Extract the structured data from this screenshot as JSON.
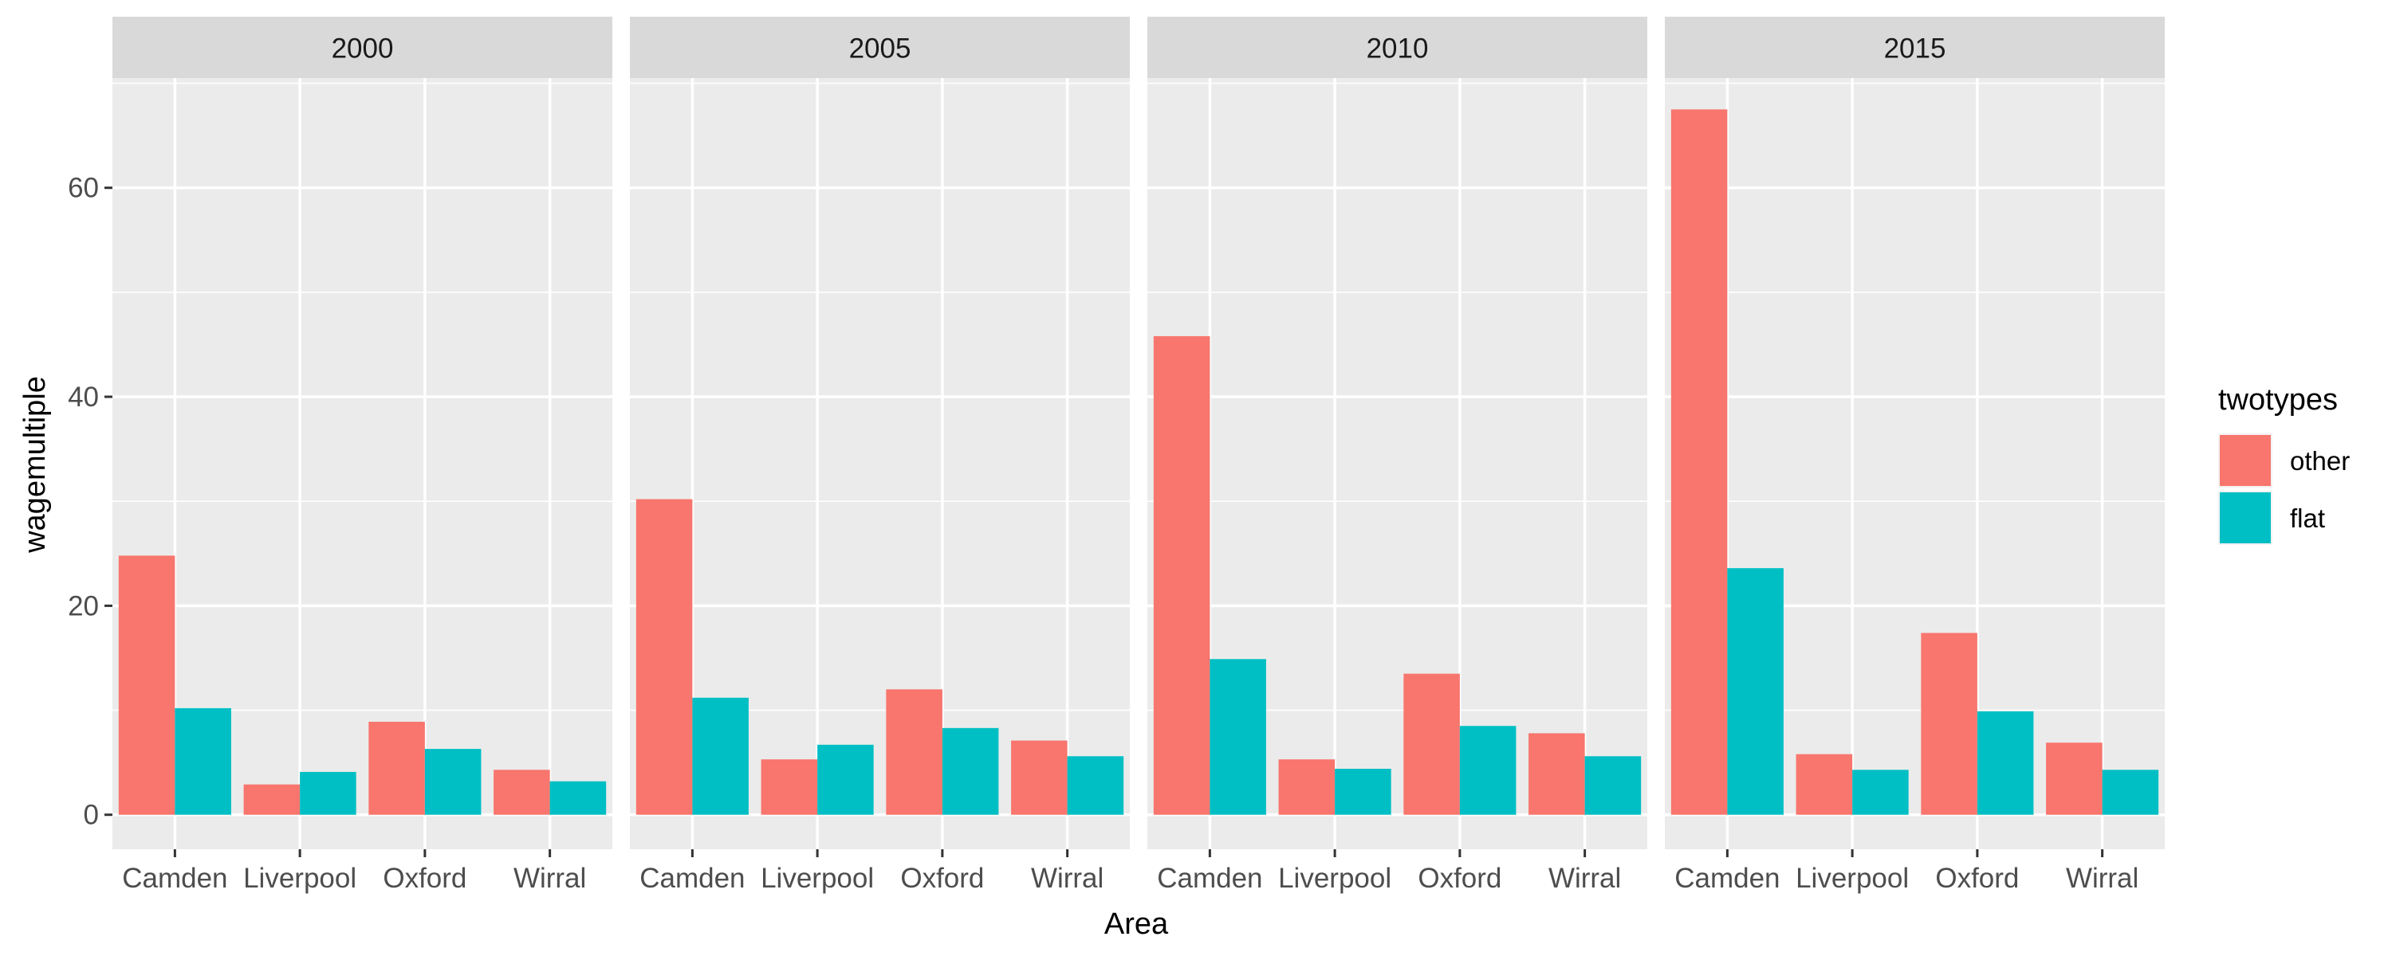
{
  "chart_data": {
    "type": "bar",
    "facet_variable": "year",
    "facets": [
      "2000",
      "2005",
      "2010",
      "2015"
    ],
    "categories": [
      "Camden",
      "Liverpool",
      "Oxford",
      "Wirral"
    ],
    "xlabel": "Area",
    "ylabel": "wagemultiple",
    "ylim": [
      -3.3,
      70.5
    ],
    "yticks": [
      0,
      20,
      40,
      60
    ],
    "grid": true,
    "legend": {
      "title": "twotypes",
      "placement": "right",
      "entries": [
        {
          "label": "other",
          "color": "#F8766D"
        },
        {
          "label": "flat",
          "color": "#00BFC4"
        }
      ]
    },
    "panels": [
      {
        "facet": "2000",
        "series": [
          {
            "name": "other",
            "color": "#F8766D",
            "values": [
              24.8,
              2.9,
              8.9,
              4.3
            ]
          },
          {
            "name": "flat",
            "color": "#00BFC4",
            "values": [
              10.2,
              4.1,
              6.3,
              3.2
            ]
          }
        ]
      },
      {
        "facet": "2005",
        "series": [
          {
            "name": "other",
            "color": "#F8766D",
            "values": [
              30.2,
              5.3,
              12.0,
              7.1
            ]
          },
          {
            "name": "flat",
            "color": "#00BFC4",
            "values": [
              11.2,
              6.7,
              8.3,
              5.6
            ]
          }
        ]
      },
      {
        "facet": "2010",
        "series": [
          {
            "name": "other",
            "color": "#F8766D",
            "values": [
              45.8,
              5.3,
              13.5,
              7.8
            ]
          },
          {
            "name": "flat",
            "color": "#00BFC4",
            "values": [
              14.9,
              4.4,
              8.5,
              5.6
            ]
          }
        ]
      },
      {
        "facet": "2015",
        "series": [
          {
            "name": "other",
            "color": "#F8766D",
            "values": [
              67.5,
              5.8,
              17.4,
              6.9
            ]
          },
          {
            "name": "flat",
            "color": "#00BFC4",
            "values": [
              23.6,
              4.3,
              9.9,
              4.3
            ]
          }
        ]
      }
    ]
  }
}
